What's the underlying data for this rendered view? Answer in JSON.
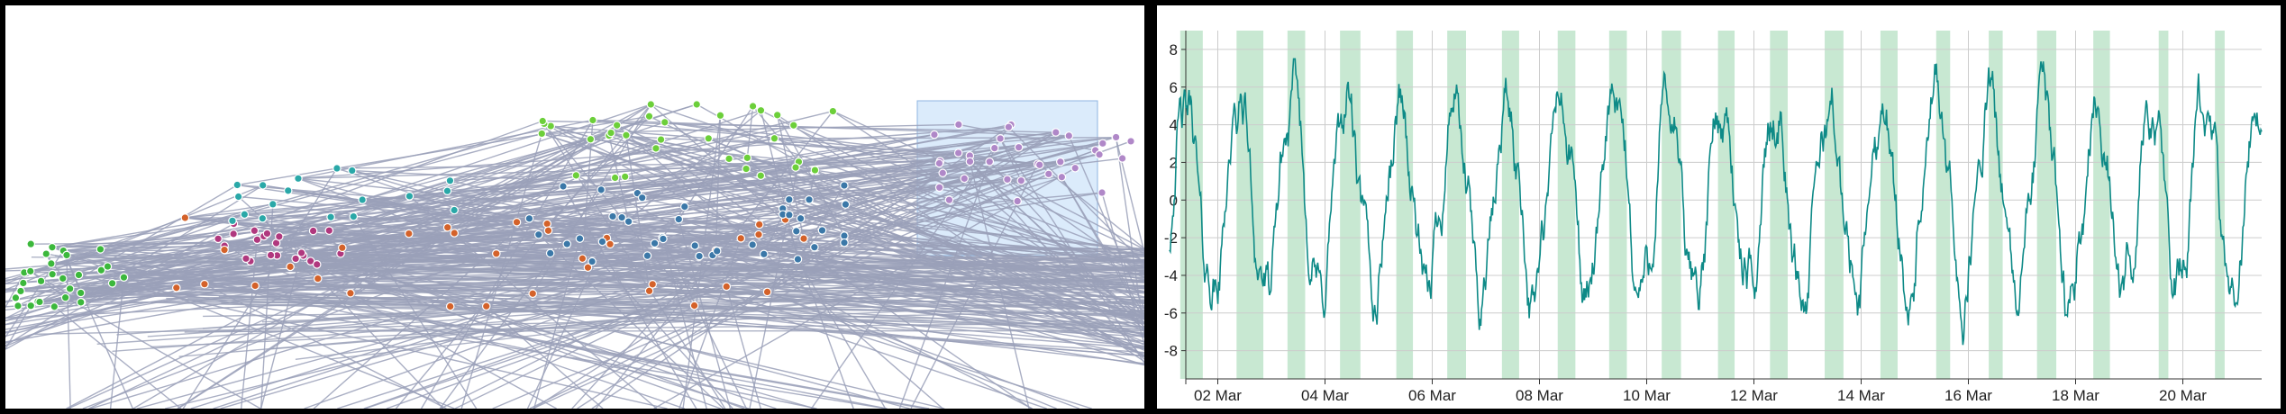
{
  "colors": {
    "edge": "#9aa0b8",
    "selection_fill": "#cfe4fa",
    "selection_stroke": "#8fb6e0",
    "cluster_green": "#3cb83c",
    "cluster_magenta": "#b0387e",
    "cluster_orange": "#d4622a",
    "cluster_teal": "#2aa8a8",
    "cluster_blue": "#3b78a8",
    "cluster_lime": "#6ccf3a",
    "cluster_purple": "#b088c8",
    "band": "#c8e8d2",
    "line": "#0e8a87",
    "grid": "#cccccc"
  },
  "chart_data": [
    {
      "type": "network",
      "clusters": [
        {
          "name": "green",
          "color": "#3cb83c"
        },
        {
          "name": "magenta",
          "color": "#b0387e"
        },
        {
          "name": "orange",
          "color": "#d4622a"
        },
        {
          "name": "teal",
          "color": "#2aa8a8"
        },
        {
          "name": "blue",
          "color": "#3b78a8"
        },
        {
          "name": "lime",
          "color": "#6ccf3a"
        },
        {
          "name": "purple",
          "color": "#b088c8"
        }
      ],
      "selection_box": true
    },
    {
      "type": "line",
      "x_start": "2024-03-01",
      "x_end": "2024-03-21",
      "x_ticks": [
        "02 Mar",
        "04 Mar",
        "06 Mar",
        "08 Mar",
        "10 Mar",
        "12 Mar",
        "14 Mar",
        "16 Mar",
        "18 Mar",
        "20 Mar"
      ],
      "y_ticks": [
        "8",
        "6",
        "4",
        "2",
        "0",
        "-2",
        "-4",
        "-6",
        "-8"
      ],
      "ylim": [
        -9.5,
        9
      ],
      "period_days": 1,
      "typical_amplitude": 5,
      "grid": true,
      "bands": "alternating daily shaded intervals"
    }
  ]
}
